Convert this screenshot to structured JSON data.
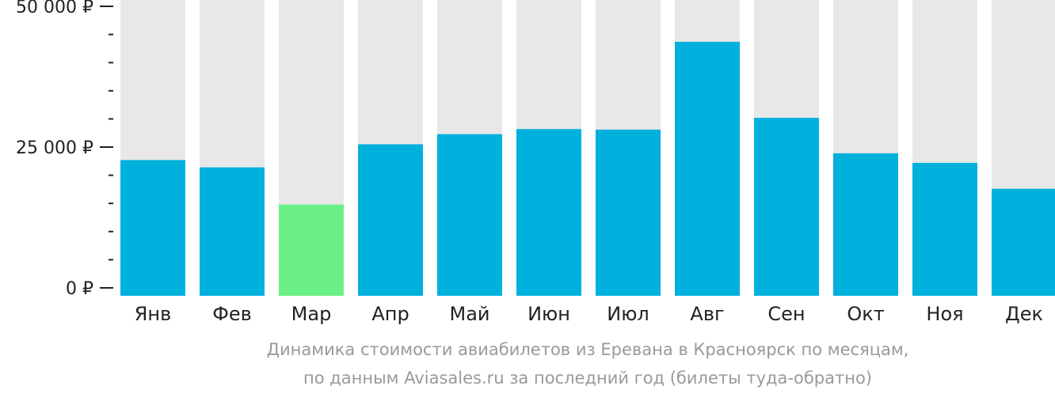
{
  "chart_data": {
    "type": "bar",
    "categories": [
      "Янв",
      "Фев",
      "Мар",
      "Апр",
      "Май",
      "Июн",
      "Июл",
      "Авг",
      "Сен",
      "Окт",
      "Ноя",
      "Дек"
    ],
    "values": [
      22700,
      21400,
      14800,
      25500,
      27300,
      28200,
      28100,
      43700,
      30200,
      23900,
      22200,
      17600
    ],
    "highlight_index": 2,
    "ylim": [
      0,
      50000
    ],
    "yticks": [
      {
        "value": 50000,
        "label": "50 000 ₽"
      },
      {
        "value": 25000,
        "label": "25 000 ₽"
      },
      {
        "value": 0,
        "label": "0 ₽"
      }
    ],
    "minor_tick_step": 5000,
    "colors": {
      "bar": "#00b0dd",
      "highlight": "#6bf086",
      "background_bar": "#e8e8e8",
      "tick": "#222222"
    }
  },
  "caption": {
    "line1": "Динамика стоимости авиабилетов из Еревана в Красноярск по месяцам,",
    "line2": "по данным Aviasales.ru за последний год (билеты туда-обратно)"
  }
}
